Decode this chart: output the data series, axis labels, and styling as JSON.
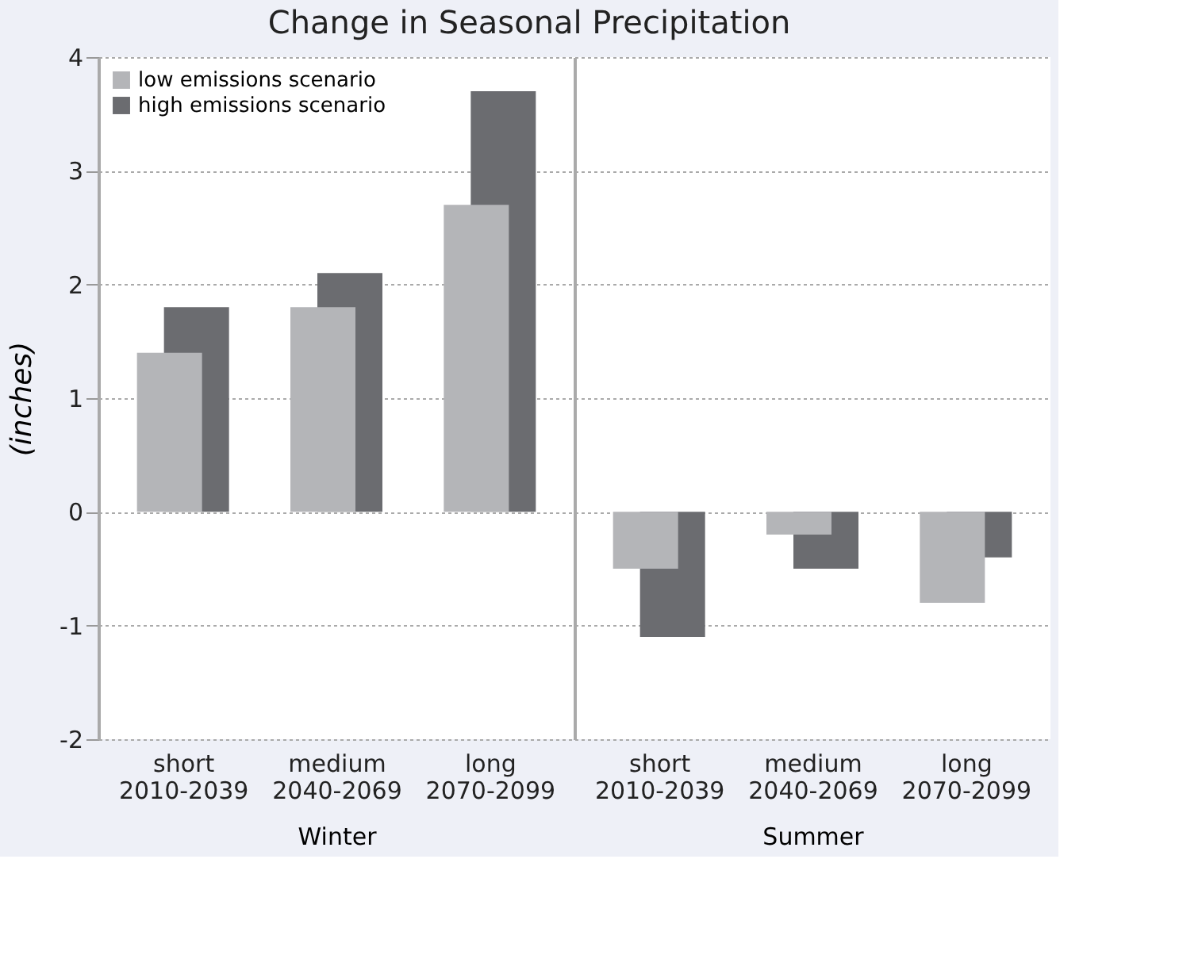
{
  "chart_data": [
    {
      "type": "bar",
      "title": "Change in Seasonal Precipitation",
      "ylabel": "(inches)",
      "xlabel": "Winter",
      "categories": [
        "short\n2010-2039",
        "medium\n2040-2069",
        "long\n2070-2099"
      ],
      "series": [
        {
          "name": "low emissions scenario",
          "color": "#b4b5b8",
          "values": [
            1.4,
            1.8,
            2.7
          ]
        },
        {
          "name": "high emissions scenario",
          "color": "#6b6c70",
          "values": [
            1.8,
            2.1,
            3.7
          ]
        }
      ],
      "ylim": [
        -2,
        4
      ],
      "yticks": [
        -2,
        -1,
        0,
        1,
        2,
        3,
        4
      ],
      "grid": "y",
      "legend": "top left"
    },
    {
      "type": "bar",
      "xlabel": "Summer",
      "categories": [
        "short\n2010-2039",
        "medium\n2040-2069",
        "long\n2070-2099"
      ],
      "series": [
        {
          "color": "#b4b5b8",
          "values": [
            -0.5,
            -0.2,
            -0.8
          ]
        },
        {
          "color": "#6b6c70",
          "values": [
            -1.1,
            -0.5,
            -0.4
          ]
        }
      ],
      "ylim": [
        -2,
        4
      ],
      "yticks": [
        -2,
        -1,
        0,
        1,
        2,
        3,
        4
      ],
      "grid": "y",
      "tick_labels": "x"
    }
  ]
}
